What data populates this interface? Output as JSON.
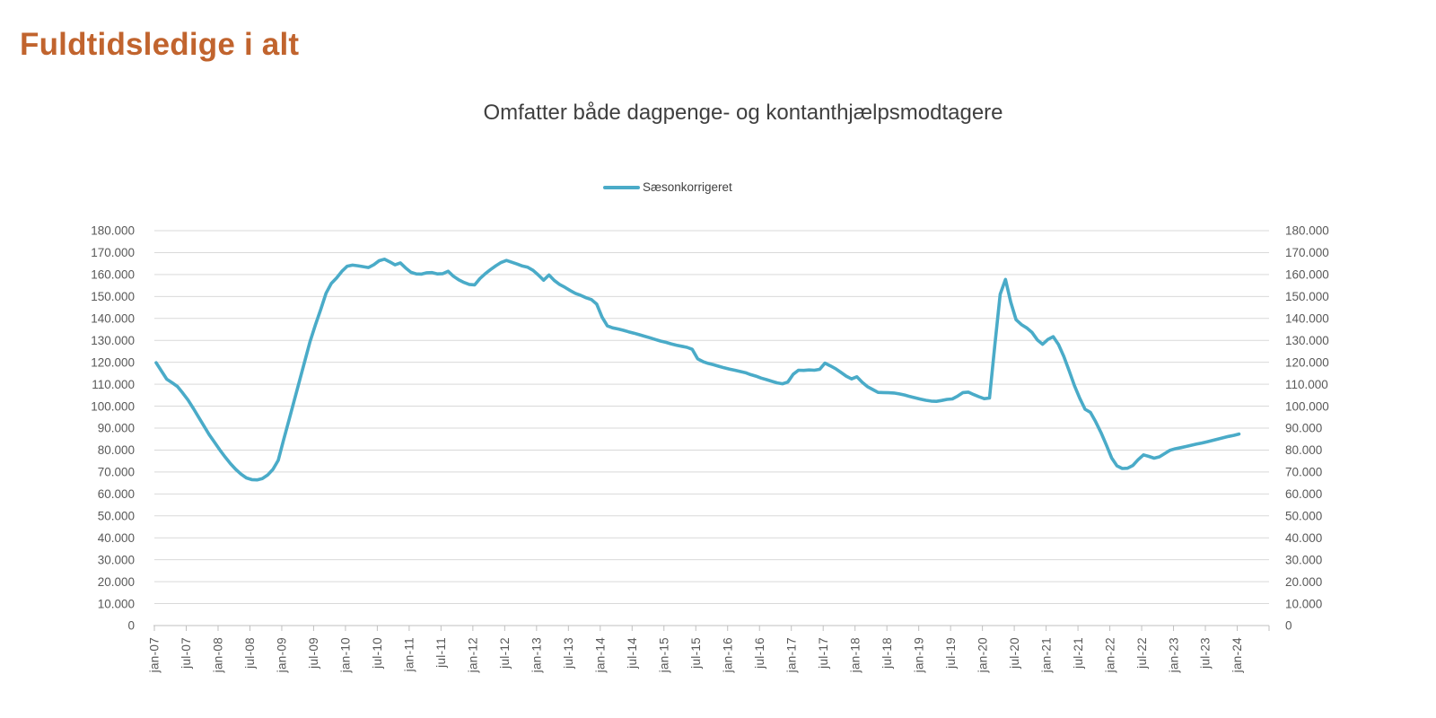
{
  "page": {
    "title": "Fuldtidsledige i alt"
  },
  "chart": {
    "subtitle": "Omfatter både dagpenge- og kontanthjælpsmodtagere",
    "legend": {
      "label": "Sæsonkorrigeret"
    }
  },
  "colors": {
    "title": "#C1642E",
    "subtitle": "#3F3F3F",
    "axis_labels": "#595959",
    "gridline": "#D9D9D9",
    "axis_line": "#BFBFBF",
    "series": "#4AABC8",
    "legend_text": "#404040",
    "background": "#FFFFFF"
  },
  "chart_data": {
    "type": "line",
    "title": "Omfatter både dagpenge- og kontanthjælpsmodtagere",
    "xlabel": "",
    "ylabel": "",
    "x_start": "jan-07",
    "x_end": "jan-24",
    "x_frequency": "monthly",
    "x_tick_labels": [
      "jan-07",
      "jul-07",
      "jan-08",
      "jul-08",
      "jan-09",
      "jul-09",
      "jan-10",
      "jul-10",
      "jan-11",
      "jul-11",
      "jan-12",
      "jul-12",
      "jan-13",
      "jul-13",
      "jan-14",
      "jul-14",
      "jan-15",
      "jul-15",
      "jan-16",
      "jul-16",
      "jan-17",
      "jul-17",
      "jan-18",
      "jul-18",
      "jan-19",
      "jul-19",
      "jan-20",
      "jul-20",
      "jan-21",
      "jul-21",
      "jan-22",
      "jul-22",
      "jan-23",
      "jul-23",
      "jan-24"
    ],
    "months_per_tick": 6,
    "ylim": [
      0,
      180000
    ],
    "y_tick_step": 10000,
    "grid": "horizontal",
    "y_axis_sides": "both",
    "legend_position": "top-center",
    "series": [
      {
        "name": "Sæsonkorrigeret",
        "color": "#4AABC8",
        "values": [
          119800,
          116000,
          112300,
          110700,
          109000,
          106000,
          102800,
          99000,
          95000,
          91000,
          87000,
          83500,
          80000,
          76800,
          73800,
          71200,
          69000,
          67300,
          66500,
          66400,
          67000,
          68600,
          71200,
          75300,
          84500,
          93500,
          102500,
          111500,
          120500,
          129500,
          137000,
          144000,
          151500,
          156000,
          158500,
          161500,
          163800,
          164300,
          164000,
          163600,
          163200,
          164500,
          166300,
          167000,
          165800,
          164400,
          165300,
          163000,
          161000,
          160300,
          160200,
          160800,
          160900,
          160300,
          160400,
          161500,
          159200,
          157600,
          156400,
          155500,
          155300,
          158200,
          160400,
          162300,
          164000,
          165500,
          166400,
          165600,
          164800,
          163900,
          163300,
          161900,
          159800,
          157400,
          159800,
          157300,
          155500,
          154200,
          152700,
          151400,
          150500,
          149400,
          148600,
          146500,
          140600,
          136600,
          135700,
          135200,
          134600,
          133900,
          133300,
          132600,
          131900,
          131200,
          130400,
          129700,
          129100,
          128400,
          127800,
          127300,
          126800,
          125900,
          121600,
          120300,
          119500,
          118900,
          118200,
          117500,
          116900,
          116400,
          115800,
          115300,
          114400,
          113700,
          112800,
          112100,
          111300,
          110600,
          110200,
          111000,
          114500,
          116400,
          116300,
          116500,
          116400,
          116800,
          119600,
          118400,
          117100,
          115400,
          113700,
          112400,
          113400,
          110900,
          108900,
          107600,
          106300,
          106200,
          106100,
          106000,
          105600,
          105100,
          104400,
          103800,
          103200,
          102700,
          102300,
          102200,
          102600,
          103100,
          103300,
          104600,
          106200,
          106400,
          105300,
          104300,
          103400,
          103700,
          128000,
          151000,
          157800,
          147400,
          139400,
          137200,
          135700,
          133600,
          130200,
          128200,
          130400,
          131700,
          128100,
          122700,
          116100,
          109300,
          103600,
          98600,
          97200,
          92900,
          88000,
          82300,
          76400,
          72800,
          71600,
          71700,
          73000,
          75600,
          77800,
          77100,
          76300,
          76900,
          78400,
          79900,
          80600,
          81100,
          81600,
          82200,
          82700,
          83200,
          83800,
          84400,
          85000,
          85600,
          86200,
          86700,
          87300
        ]
      }
    ]
  }
}
